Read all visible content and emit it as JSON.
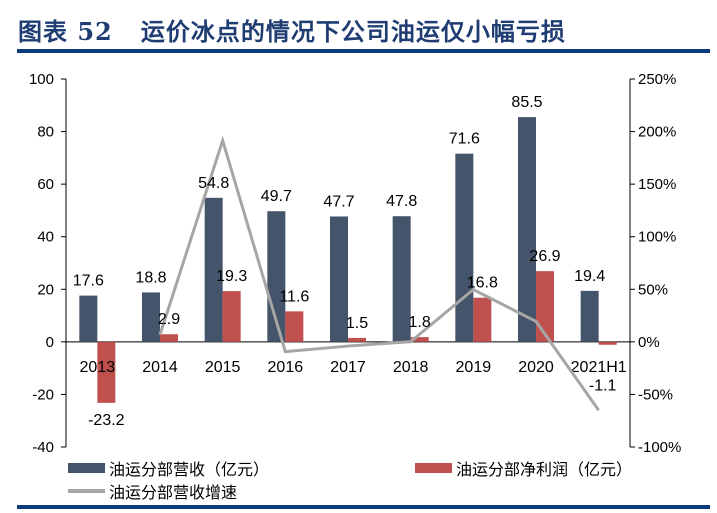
{
  "header": {
    "title": "图表 52   运价冰点的情况下公司油运仅小幅亏损"
  },
  "chart_data": {
    "type": "bar",
    "categories": [
      "2013",
      "2014",
      "2015",
      "2016",
      "2017",
      "2018",
      "2019",
      "2020",
      "2021H1"
    ],
    "series": [
      {
        "name": "油运分部营收（亿元）",
        "type": "bar",
        "axis": "left",
        "color": "#44546A",
        "values": [
          17.6,
          18.8,
          54.8,
          49.7,
          47.7,
          47.8,
          71.6,
          85.5,
          19.4
        ],
        "labels": [
          "17.6",
          "18.8",
          "54.8",
          "49.7",
          "47.7",
          "47.8",
          "71.6",
          "85.5",
          "19.4"
        ]
      },
      {
        "name": "油运分部净利润（亿元）",
        "type": "bar",
        "axis": "left",
        "color": "#C0504D",
        "values": [
          -23.2,
          2.9,
          19.3,
          11.6,
          1.5,
          1.8,
          16.8,
          26.9,
          -1.1
        ],
        "labels": [
          "-23.2",
          "2.9",
          "19.3",
          "11.6",
          "1.5",
          "1.8",
          "16.8",
          "26.9",
          "-1.1"
        ]
      },
      {
        "name": "油运分部营收增速",
        "type": "line",
        "axis": "right",
        "color": "#A6A6A6",
        "values": [
          null,
          6.8,
          191.5,
          -9.3,
          -4.0,
          0.2,
          49.8,
          19.4,
          -65
        ]
      }
    ],
    "left_axis": {
      "ylim": [
        -40,
        100
      ],
      "ticks": [
        "100",
        "80",
        "60",
        "40",
        "20",
        "0",
        "-20",
        "-40"
      ]
    },
    "right_axis": {
      "ylim": [
        -100,
        250
      ],
      "ticks": [
        "250%",
        "200%",
        "150%",
        "100%",
        "50%",
        "0%",
        "-50%",
        "-100%"
      ]
    },
    "grid": false,
    "legend": "bottom"
  }
}
